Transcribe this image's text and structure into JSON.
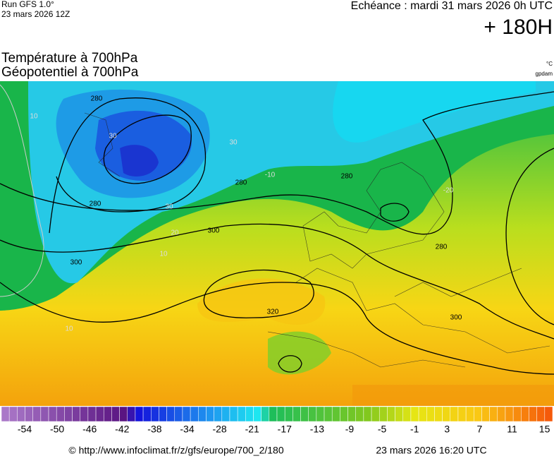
{
  "header": {
    "run": "Run GFS 1.0°",
    "date": "23 mars 2026 12Z",
    "echeance": "Echéance : mardi 31 mars 2026 0h UTC",
    "lead": "+ 180H",
    "title_line1": "Température à 700hPa",
    "title_line2": "Géopotentiel à 700hPa",
    "unit_temp": "°C",
    "unit_geo": "gpdam"
  },
  "map": {
    "contour_labels": [
      "280",
      "280",
      "280",
      "280",
      "280",
      "300",
      "300",
      "300",
      "320",
      "30",
      "30",
      "30",
      "20",
      "10",
      "10",
      "10",
      "-10",
      "-20"
    ]
  },
  "colorbar": {
    "labels": [
      -54,
      -50,
      -46,
      -42,
      -38,
      -34,
      -28,
      -21,
      -17,
      -13,
      -9,
      -5,
      -1,
      3,
      7,
      11,
      15
    ]
  },
  "footer": {
    "source": "© http://www.infoclimat.fr/z/gfs/europe/700_2/180",
    "timestamp": "23 mars 2026 16:20 UTC"
  }
}
